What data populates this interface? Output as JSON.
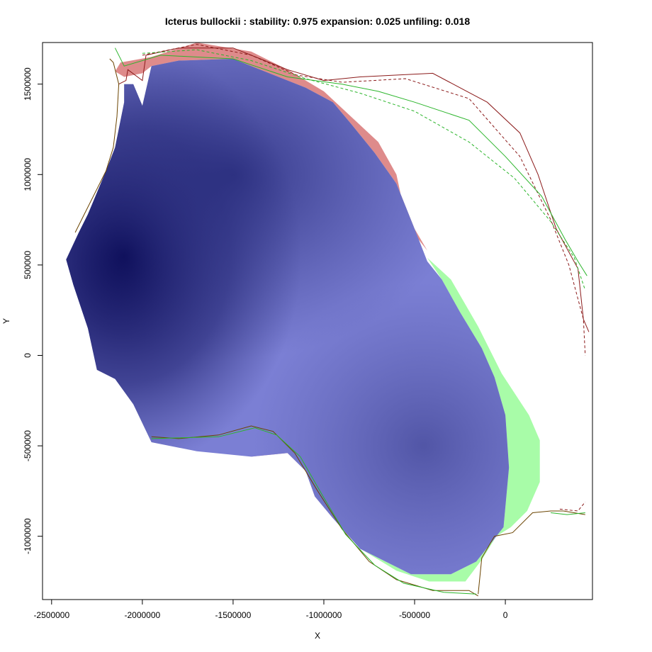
{
  "chart_data": {
    "type": "heatmap",
    "title": "Icterus bullockii : stability: 0.975 expansion: 0.025 unfiling: 0.018",
    "xlabel": "X",
    "ylabel": "Y",
    "xlim": [
      -2550000,
      480000
    ],
    "ylim": [
      -1350000,
      1730000
    ],
    "x_ticks": [
      {
        "value": -2500000,
        "label": "-2500000"
      },
      {
        "value": -2000000,
        "label": "-2000000"
      },
      {
        "value": -1500000,
        "label": "-1500000"
      },
      {
        "value": -1000000,
        "label": "-1000000"
      },
      {
        "value": -500000,
        "label": "-500000"
      },
      {
        "value": 0,
        "label": "0"
      }
    ],
    "y_ticks": [
      {
        "value": -1000000,
        "label": "-1000000"
      },
      {
        "value": -500000,
        "label": "-500000"
      },
      {
        "value": 0,
        "label": "0"
      },
      {
        "value": 500000,
        "label": "500000"
      },
      {
        "value": 1000000,
        "label": "1000000"
      },
      {
        "value": 1500000,
        "label": "1500000"
      }
    ],
    "grid": false,
    "categories": {
      "stability": "#7b7fd4",
      "expansion": "#a8fca8",
      "unfilling": "#de8b8b",
      "density_peak": "#0a0a55"
    },
    "stable_region": [
      [
        -2350000,
        680000
      ],
      [
        -2300000,
        780000
      ],
      [
        -2200000,
        1020000
      ],
      [
        -2150000,
        1150000
      ],
      [
        -2100000,
        1400000
      ],
      [
        -2100000,
        1500000
      ],
      [
        -2050000,
        1500000
      ],
      [
        -2000000,
        1380000
      ],
      [
        -1950000,
        1600000
      ],
      [
        -1800000,
        1630000
      ],
      [
        -1500000,
        1640000
      ],
      [
        -1300000,
        1560000
      ],
      [
        -1100000,
        1480000
      ],
      [
        -950000,
        1400000
      ],
      [
        -850000,
        1280000
      ],
      [
        -720000,
        1120000
      ],
      [
        -600000,
        950000
      ],
      [
        -500000,
        700000
      ],
      [
        -430000,
        520000
      ],
      [
        -350000,
        420000
      ],
      [
        -250000,
        240000
      ],
      [
        -130000,
        40000
      ],
      [
        -60000,
        -120000
      ],
      [
        0,
        -330000
      ],
      [
        20000,
        -620000
      ],
      [
        -10000,
        -950000
      ],
      [
        -160000,
        -1140000
      ],
      [
        -300000,
        -1210000
      ],
      [
        -520000,
        -1210000
      ],
      [
        -800000,
        -1070000
      ],
      [
        -950000,
        -900000
      ],
      [
        -1050000,
        -780000
      ],
      [
        -1100000,
        -640000
      ],
      [
        -1200000,
        -540000
      ],
      [
        -1400000,
        -560000
      ],
      [
        -1700000,
        -530000
      ],
      [
        -1950000,
        -480000
      ],
      [
        -2050000,
        -270000
      ],
      [
        -2150000,
        -130000
      ],
      [
        -2250000,
        -80000
      ],
      [
        -2300000,
        150000
      ],
      [
        -2380000,
        390000
      ],
      [
        -2420000,
        530000
      ]
    ],
    "expansion_region": [
      [
        -430000,
        540000
      ],
      [
        -300000,
        420000
      ],
      [
        -150000,
        160000
      ],
      [
        -20000,
        -100000
      ],
      [
        130000,
        -330000
      ],
      [
        190000,
        -470000
      ],
      [
        190000,
        -700000
      ],
      [
        120000,
        -860000
      ],
      [
        30000,
        -950000
      ],
      [
        -50000,
        -1000000
      ],
      [
        -130000,
        -1130000
      ],
      [
        -220000,
        -1250000
      ],
      [
        -420000,
        -1250000
      ],
      [
        -600000,
        -1190000
      ],
      [
        -780000,
        -1080000
      ],
      [
        -520000,
        -1210000
      ],
      [
        -300000,
        -1210000
      ],
      [
        -160000,
        -1140000
      ],
      [
        -10000,
        -950000
      ],
      [
        20000,
        -620000
      ],
      [
        0,
        -330000
      ],
      [
        -60000,
        -120000
      ],
      [
        -130000,
        40000
      ],
      [
        -250000,
        240000
      ],
      [
        -350000,
        420000
      ]
    ],
    "unfilling_regions": [
      [
        [
          -2150000,
          1570000
        ],
        [
          -2120000,
          1620000
        ],
        [
          -1950000,
          1650000
        ],
        [
          -1700000,
          1730000
        ],
        [
          -1400000,
          1680000
        ],
        [
          -1200000,
          1580000
        ],
        [
          -1000000,
          1460000
        ],
        [
          -850000,
          1320000
        ],
        [
          -700000,
          1180000
        ],
        [
          -600000,
          1000000
        ],
        [
          -540000,
          720000
        ],
        [
          -430000,
          580000
        ],
        [
          -500000,
          700000
        ],
        [
          -600000,
          950000
        ],
        [
          -720000,
          1120000
        ],
        [
          -850000,
          1280000
        ],
        [
          -950000,
          1400000
        ],
        [
          -1100000,
          1480000
        ],
        [
          -1300000,
          1560000
        ],
        [
          -1500000,
          1640000
        ],
        [
          -1800000,
          1630000
        ],
        [
          -1950000,
          1600000
        ],
        [
          -2000000,
          1560000
        ],
        [
          -2100000,
          1540000
        ]
      ],
      [
        [
          -1400000,
          -560000
        ],
        [
          -1260000,
          -510000
        ],
        [
          -1160000,
          -540000
        ],
        [
          -1060000,
          -640000
        ],
        [
          -980000,
          -760000
        ],
        [
          -900000,
          -900000
        ],
        [
          -950000,
          -900000
        ],
        [
          -1050000,
          -780000
        ],
        [
          -1100000,
          -640000
        ],
        [
          -1200000,
          -540000
        ]
      ]
    ],
    "density_centers": [
      {
        "x": -2100000,
        "y": 550000,
        "strength": 1.0
      },
      {
        "x": -1500000,
        "y": 1000000,
        "strength": 0.6
      },
      {
        "x": -450000,
        "y": -500000,
        "strength": 0.45
      }
    ],
    "lines": [
      {
        "color": "#8b1a1a",
        "style": "solid",
        "points": [
          [
            -2130000,
            1500000
          ],
          [
            -2090000,
            1520000
          ],
          [
            -2080000,
            1580000
          ],
          [
            -2000000,
            1520000
          ],
          [
            -1980000,
            1660000
          ],
          [
            -1800000,
            1700000
          ],
          [
            -1500000,
            1700000
          ],
          [
            -1300000,
            1620000
          ],
          [
            -1200000,
            1580000
          ],
          [
            -1000000,
            1520000
          ],
          [
            -800000,
            1540000
          ],
          [
            -400000,
            1560000
          ],
          [
            -100000,
            1400000
          ],
          [
            80000,
            1230000
          ],
          [
            180000,
            1000000
          ],
          [
            280000,
            700000
          ],
          [
            400000,
            480000
          ],
          [
            430000,
            200000
          ],
          [
            460000,
            130000
          ]
        ]
      },
      {
        "color": "#8b1a1a",
        "style": "dashed",
        "points": [
          [
            -2000000,
            1660000
          ],
          [
            -1700000,
            1720000
          ],
          [
            -1400000,
            1660000
          ],
          [
            -1150000,
            1550000
          ],
          [
            -900000,
            1510000
          ],
          [
            -550000,
            1530000
          ],
          [
            -200000,
            1420000
          ],
          [
            80000,
            1100000
          ],
          [
            250000,
            750000
          ],
          [
            350000,
            500000
          ],
          [
            430000,
            200000
          ],
          [
            440000,
            0
          ]
        ]
      },
      {
        "color": "#2bb52b",
        "style": "solid",
        "points": [
          [
            -2150000,
            1700000
          ],
          [
            -2100000,
            1600000
          ],
          [
            -1900000,
            1660000
          ],
          [
            -1500000,
            1640000
          ],
          [
            -1200000,
            1540000
          ],
          [
            -900000,
            1500000
          ],
          [
            -700000,
            1460000
          ],
          [
            -500000,
            1400000
          ],
          [
            -200000,
            1300000
          ],
          [
            0,
            1100000
          ],
          [
            200000,
            880000
          ],
          [
            330000,
            640000
          ],
          [
            400000,
            520000
          ],
          [
            450000,
            440000
          ]
        ]
      },
      {
        "color": "#2bb52b",
        "style": "dashed",
        "points": [
          [
            -2000000,
            1670000
          ],
          [
            -1700000,
            1690000
          ],
          [
            -1400000,
            1630000
          ],
          [
            -1100000,
            1530000
          ],
          [
            -800000,
            1450000
          ],
          [
            -500000,
            1350000
          ],
          [
            -200000,
            1180000
          ],
          [
            50000,
            980000
          ],
          [
            250000,
            740000
          ],
          [
            380000,
            540000
          ],
          [
            440000,
            360000
          ]
        ]
      },
      {
        "color": "#6b4400",
        "style": "solid",
        "points": [
          [
            -2370000,
            680000
          ],
          [
            -2320000,
            780000
          ],
          [
            -2200000,
            1020000
          ],
          [
            -2160000,
            1150000
          ],
          [
            -2140000,
            1320000
          ],
          [
            -2130000,
            1500000
          ],
          [
            -2160000,
            1620000
          ],
          [
            -2180000,
            1640000
          ]
        ]
      },
      {
        "color": "#6b4400",
        "style": "solid",
        "points": [
          [
            -1950000,
            -450000
          ],
          [
            -1800000,
            -460000
          ],
          [
            -1580000,
            -440000
          ],
          [
            -1400000,
            -390000
          ],
          [
            -1280000,
            -420000
          ],
          [
            -1160000,
            -540000
          ],
          [
            -1040000,
            -740000
          ],
          [
            -900000,
            -960000
          ],
          [
            -750000,
            -1140000
          ],
          [
            -600000,
            -1240000
          ],
          [
            -400000,
            -1300000
          ],
          [
            -200000,
            -1300000
          ],
          [
            -150000,
            -1330000
          ]
        ]
      },
      {
        "color": "#2bb52b",
        "style": "solid",
        "points": [
          [
            -1950000,
            -460000
          ],
          [
            -1580000,
            -450000
          ],
          [
            -1380000,
            -400000
          ],
          [
            -1260000,
            -440000
          ],
          [
            -1130000,
            -560000
          ],
          [
            -1010000,
            -770000
          ],
          [
            -880000,
            -990000
          ],
          [
            -720000,
            -1160000
          ],
          [
            -560000,
            -1260000
          ],
          [
            -340000,
            -1310000
          ],
          [
            -160000,
            -1320000
          ]
        ]
      },
      {
        "color": "#6b4400",
        "style": "solid",
        "points": [
          [
            -150000,
            -1320000
          ],
          [
            -130000,
            -1120000
          ],
          [
            -60000,
            -1000000
          ],
          [
            40000,
            -980000
          ],
          [
            150000,
            -870000
          ],
          [
            250000,
            -860000
          ],
          [
            320000,
            -860000
          ],
          [
            440000,
            -880000
          ]
        ]
      },
      {
        "color": "#2bb52b",
        "style": "solid",
        "points": [
          [
            250000,
            -870000
          ],
          [
            340000,
            -880000
          ],
          [
            440000,
            -870000
          ]
        ]
      },
      {
        "color": "#8b1a1a",
        "style": "dashed",
        "points": [
          [
            300000,
            -850000
          ],
          [
            400000,
            -860000
          ],
          [
            440000,
            -810000
          ]
        ]
      }
    ]
  }
}
